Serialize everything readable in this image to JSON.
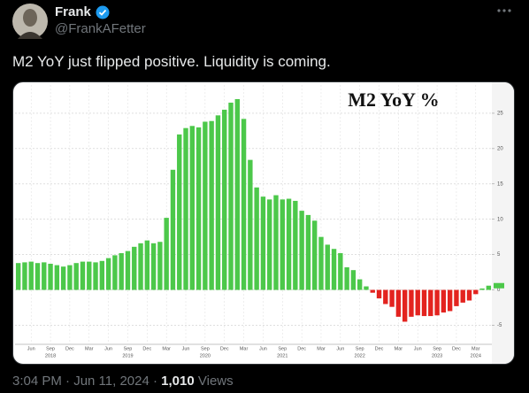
{
  "tweet": {
    "name": "Frank",
    "handle": "@FrankAFetter",
    "text": "M2 YoY just flipped positive. Liquidity is coming.",
    "time": "3:04 PM · Jun 11, 2024",
    "separator": "·",
    "views": "1,010",
    "views_label": "Views"
  },
  "chart_data": {
    "type": "bar",
    "title": "M2 YoY %",
    "categories": [
      null,
      null,
      "Jun",
      null,
      null,
      "Sep",
      null,
      null,
      "Dec",
      null,
      null,
      "Mar",
      null,
      null,
      "Jun",
      null,
      null,
      "Sep",
      null,
      null,
      "Dec",
      null,
      null,
      "Mar",
      null,
      null,
      "Jun",
      null,
      null,
      "Sep",
      null,
      null,
      "Dec",
      null,
      null,
      "Mar",
      null,
      null,
      "Jun",
      null,
      null,
      "Sep",
      null,
      null,
      "Dec",
      null,
      null,
      "Mar",
      null,
      null,
      "Jun",
      null,
      null,
      "Sep",
      null,
      null,
      "Dec",
      null,
      null,
      "Mar",
      null,
      null,
      "Jun",
      null,
      null,
      "Sep",
      null,
      null,
      "Dec",
      null,
      null,
      "Mar",
      null,
      null
    ],
    "values": [
      3.8,
      3.9,
      4.0,
      3.8,
      3.9,
      3.7,
      3.5,
      3.3,
      3.5,
      3.8,
      4.0,
      4.0,
      3.9,
      4.1,
      4.5,
      4.9,
      5.2,
      5.5,
      6.1,
      6.6,
      7.0,
      6.6,
      6.8,
      10.2,
      17.0,
      22.0,
      22.9,
      23.2,
      23.0,
      23.8,
      23.9,
      24.7,
      25.5,
      26.5,
      27.0,
      24.2,
      18.4,
      14.5,
      13.2,
      12.8,
      13.4,
      12.8,
      12.9,
      12.6,
      11.2,
      10.6,
      9.8,
      7.5,
      6.4,
      5.8,
      5.2,
      3.2,
      2.8,
      1.5,
      0.5,
      -0.4,
      -1.2,
      -2.0,
      -2.4,
      -3.8,
      -4.5,
      -3.8,
      -3.6,
      -3.7,
      -3.7,
      -3.6,
      -3.2,
      -3.0,
      -2.3,
      -1.8,
      -1.5,
      -0.6,
      0.2,
      0.6
    ],
    "year_labels": [
      {
        "value": 5,
        "label": "2018"
      },
      {
        "value": 17,
        "label": "2019"
      },
      {
        "value": 29,
        "label": "2020"
      },
      {
        "value": 41,
        "label": "2021"
      },
      {
        "value": 53,
        "label": "2022"
      },
      {
        "value": 65,
        "label": "2023"
      },
      {
        "value": 71,
        "label": "2024"
      }
    ],
    "positive_color": "#4cc84a",
    "negative_color": "#e3231f",
    "ylim": [
      -7.7,
      29
    ],
    "yticks": [
      -5,
      0,
      5,
      10,
      15,
      20,
      25
    ],
    "grid": true
  }
}
